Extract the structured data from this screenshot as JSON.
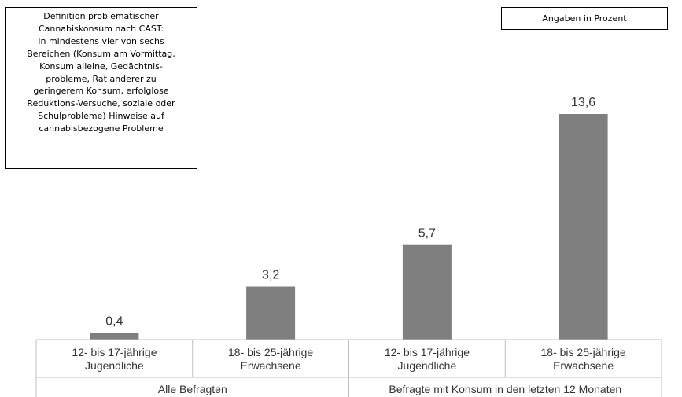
{
  "definition_box": {
    "lines": [
      "Definition problematischer",
      "Cannabiskonsum nach CAST:",
      "In mindestens vier von sechs",
      "Bereichen (Konsum am Vormittag,",
      "Konsum alleine, Gedächtnis-",
      "probleme, Rat anderer zu",
      "geringerem Konsum, erfolglose",
      "Reduktions-Versuche, soziale oder",
      "Schulprobleme) Hinweise auf",
      "cannabisbezogene Probleme"
    ]
  },
  "units_label": "Angaben in Prozent",
  "colors": {
    "bar": "#7f7f7f",
    "axis": "#c0c0c0",
    "text": "#333333"
  },
  "chart_data": {
    "type": "bar",
    "title": "",
    "xlabel": "",
    "ylabel": "",
    "ylim": [
      0,
      16
    ],
    "grid": false,
    "categories": [
      [
        "12- bis 17-jährige",
        "Jugendliche"
      ],
      [
        "18- bis 25-jährige",
        "Erwachsene"
      ],
      [
        "12- bis 17-jährige",
        "Jugendliche"
      ],
      [
        "18- bis 25-jährige",
        "Erwachsene"
      ]
    ],
    "values": [
      0.4,
      3.2,
      5.7,
      13.6
    ],
    "value_labels": [
      "0,4",
      "3,2",
      "5,7",
      "13,6"
    ],
    "groups": [
      {
        "label": "Alle Befragten",
        "categories": 2
      },
      {
        "label": "Befragte mit Konsum in den letzten 12 Monaten",
        "categories": 2
      }
    ]
  }
}
